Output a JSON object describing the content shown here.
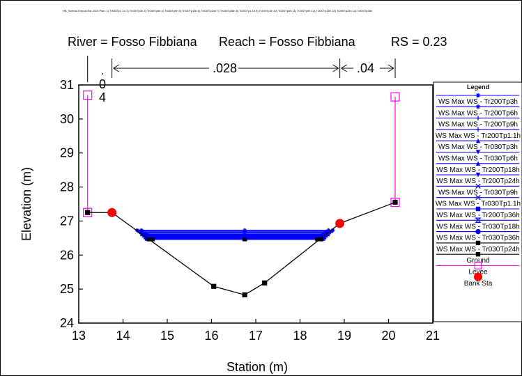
{
  "plan_header": "HB_Selenia Empoli Est 2019     Plan:    1) Tr030Tp1.1h    2) Tr030Tp3h    3) Tr030Tp6h    4) Tr030Tp9h    5) Tr030Tp18h    6) Tr030Tp24h    7) Tr030Tp36h    8) Tr200Tp1.1h    9) Tr200Tp3h    10) Tr200Tp6h    11) Tr200Tp9h    12) Tr200Tp18h    13) Tr200Tp24h    14) Tr200Tp36h",
  "title": {
    "river": "River = Fosso Fibbiana",
    "reach": "Reach = Fosso Fibbiana",
    "rs": "RS = 0.23"
  },
  "mannings": {
    "left_vertical": [
      ".",
      "0",
      "4"
    ],
    "channel": ".028",
    "right": ".04"
  },
  "legend": {
    "title": "Legend",
    "items": [
      {
        "label": "WS Max WS - Tr200Tp3h",
        "marker": "asterisk",
        "color": "#0000ff"
      },
      {
        "label": "WS Max WS - Tr200Tp6h",
        "marker": "asterisk",
        "color": "#0000ff"
      },
      {
        "label": "WS Max WS - Tr200Tp9h",
        "marker": "plus",
        "color": "#0000ff"
      },
      {
        "label": "WS Max WS - Tr200Tp1.1h",
        "marker": "plus",
        "color": "#0000ff"
      },
      {
        "label": "WS Max WS - Tr030Tp3h",
        "marker": "triangle-up",
        "color": "#0000ff"
      },
      {
        "label": "WS Max WS - Tr030Tp6h",
        "marker": "triangle-down",
        "color": "#0000ff"
      },
      {
        "label": "WS Max WS - Tr200Tp18h",
        "marker": "triangle-up",
        "color": "#0000ff"
      },
      {
        "label": "WS Max WS - Tr200Tp24h",
        "marker": "triangle-down",
        "color": "#0000ff"
      },
      {
        "label": "WS Max WS - Tr030Tp9h",
        "marker": "x",
        "color": "#0000ff"
      },
      {
        "label": "WS Max WS - Tr030Tp1.1h",
        "marker": "x",
        "color": "#0000ff"
      },
      {
        "label": "WS Max WS - Tr200Tp36h",
        "marker": "square",
        "color": "#0000ff"
      },
      {
        "label": "WS Max WS - Tr030Tp18h",
        "marker": "hourglass",
        "color": "#0000ff"
      },
      {
        "label": "WS Max WS - Tr030Tp36h",
        "marker": "circle",
        "color": "#0000ff"
      },
      {
        "label": "WS Max WS - Tr030Tp24h",
        "marker": "square",
        "color": "#000000"
      },
      {
        "label": "Ground",
        "marker": "square",
        "color": "#000000"
      },
      {
        "label": "Levee",
        "marker": "open-square",
        "color": "#ff00ff"
      },
      {
        "label": "Bank Sta",
        "marker": "circle",
        "color": "#ff0000"
      }
    ]
  },
  "chart_data": {
    "type": "line",
    "xlabel": "Station (m)",
    "ylabel": "Elevation (m)",
    "xlim": [
      13,
      21
    ],
    "ylim": [
      24,
      31
    ],
    "xticks": [
      13,
      14,
      15,
      16,
      17,
      18,
      19,
      20,
      21
    ],
    "yticks": [
      24,
      25,
      26,
      27,
      28,
      29,
      30,
      31
    ],
    "grid": false,
    "legend_position": "right",
    "colors": {
      "ws": "#0000ff",
      "ground": "#000000",
      "levee": "#ff00ff",
      "bank": "#ff0000"
    },
    "ground": {
      "x": [
        13.2,
        13.75,
        16.05,
        16.75,
        17.2,
        18.9,
        20.15
      ],
      "y": [
        27.25,
        27.25,
        25.08,
        24.83,
        25.18,
        26.93,
        27.55
      ]
    },
    "levees": [
      {
        "station": 13.2,
        "bottom": 27.25,
        "top": 30.7
      },
      {
        "station": 20.15,
        "bottom": 27.55,
        "top": 30.65
      }
    ],
    "bank_stations": [
      {
        "x": 13.75,
        "y": 27.25
      },
      {
        "x": 18.9,
        "y": 26.93
      }
    ],
    "water_surfaces": [
      {
        "name": "WS Max WS - Tr200Tp3h",
        "elevation": 26.73,
        "x_left": 14.32,
        "x_right": 18.74
      },
      {
        "name": "WS Max WS - Tr200Tp6h",
        "elevation": 26.7,
        "x_left": 14.35,
        "x_right": 18.72
      },
      {
        "name": "WS Max WS - Tr200Tp9h",
        "elevation": 26.67,
        "x_left": 14.38,
        "x_right": 18.69
      },
      {
        "name": "WS Max WS - Tr200Tp1.1h",
        "elevation": 26.64,
        "x_left": 14.4,
        "x_right": 18.66
      },
      {
        "name": "WS Max WS - Tr030Tp3h",
        "elevation": 26.61,
        "x_left": 14.43,
        "x_right": 18.63
      },
      {
        "name": "WS Max WS - Tr030Tp6h",
        "elevation": 26.59,
        "x_left": 14.45,
        "x_right": 18.61
      },
      {
        "name": "WS Max WS - Tr200Tp18h",
        "elevation": 26.57,
        "x_left": 14.47,
        "x_right": 18.59
      },
      {
        "name": "WS Max WS - Tr200Tp24h",
        "elevation": 26.55,
        "x_left": 14.49,
        "x_right": 18.57
      },
      {
        "name": "WS Max WS - Tr030Tp9h",
        "elevation": 26.53,
        "x_left": 14.51,
        "x_right": 18.55
      },
      {
        "name": "WS Max WS - Tr030Tp1.1h",
        "elevation": 26.52,
        "x_left": 14.52,
        "x_right": 18.54
      },
      {
        "name": "WS Max WS - Tr200Tp36h",
        "elevation": 26.5,
        "x_left": 14.54,
        "x_right": 18.52
      },
      {
        "name": "WS Max WS - Tr030Tp18h",
        "elevation": 26.49,
        "x_left": 14.55,
        "x_right": 18.51
      },
      {
        "name": "WS Max WS - Tr030Tp36h",
        "elevation": 26.47,
        "x_left": 14.57,
        "x_right": 18.49
      },
      {
        "name": "WS Max WS - Tr030Tp24h",
        "elevation": 26.46,
        "x_left": 14.58,
        "x_right": 18.48
      }
    ]
  }
}
